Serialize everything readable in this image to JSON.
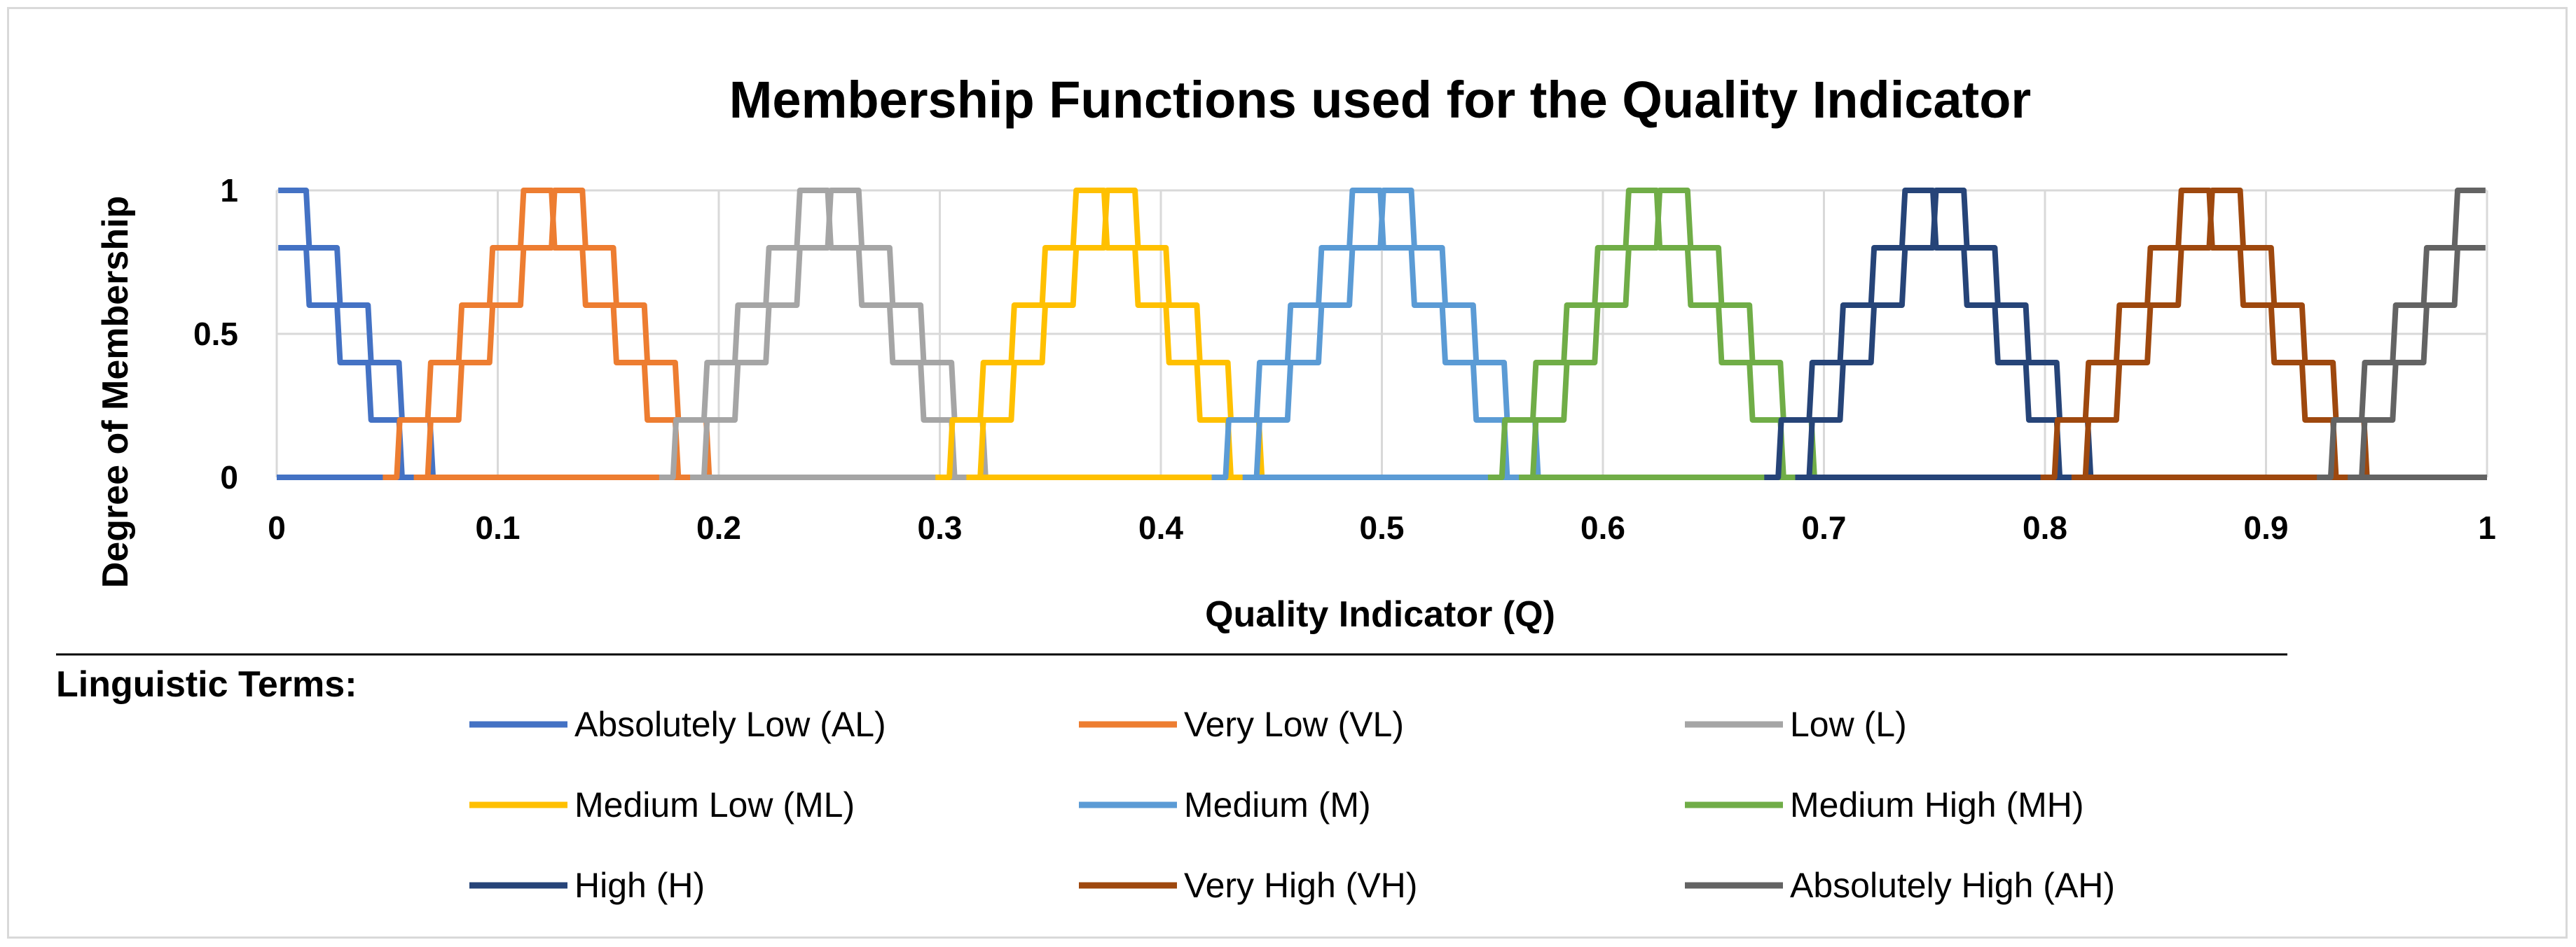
{
  "chart_data": {
    "type": "line",
    "title": "Membership Functions used for the Quality Indicator",
    "xlabel": "Quality Indicator (Q)",
    "ylabel": "Degree of Membership",
    "xlim": [
      0,
      1
    ],
    "ylim": [
      0,
      1
    ],
    "x_ticks": [
      "0",
      "0.1",
      "0.2",
      "0.3",
      "0.4",
      "0.5",
      "0.6",
      "0.7",
      "0.8",
      "0.9",
      "1"
    ],
    "y_ticks": [
      "0",
      "0.5",
      "1"
    ],
    "grid": true,
    "legend_title": "Linguistic Terms:",
    "legend_position": "bottom",
    "series": [
      {
        "name": "Absolutely Low (AL)",
        "color": "#4472C4",
        "center": 0.0,
        "half_width": 0.07
      },
      {
        "name": "Very Low (VL)",
        "color": "#ED7D31",
        "center": 0.125,
        "half_width": 0.07
      },
      {
        "name": "Low (L)",
        "color": "#A5A5A5",
        "center": 0.25,
        "half_width": 0.07
      },
      {
        "name": "Medium Low (ML)",
        "color": "#FFC000",
        "center": 0.375,
        "half_width": 0.07
      },
      {
        "name": "Medium (M)",
        "color": "#5B9BD5",
        "center": 0.5,
        "half_width": 0.07
      },
      {
        "name": "Medium High (MH)",
        "color": "#70AD47",
        "center": 0.625,
        "half_width": 0.07
      },
      {
        "name": "High (H)",
        "color": "#264478",
        "center": 0.75,
        "half_width": 0.07
      },
      {
        "name": "Very High (VH)",
        "color": "#9E480E",
        "center": 0.875,
        "half_width": 0.07
      },
      {
        "name": "Absolutely High (AH)",
        "color": "#636363",
        "center": 1.0,
        "half_width": 0.07
      }
    ]
  }
}
